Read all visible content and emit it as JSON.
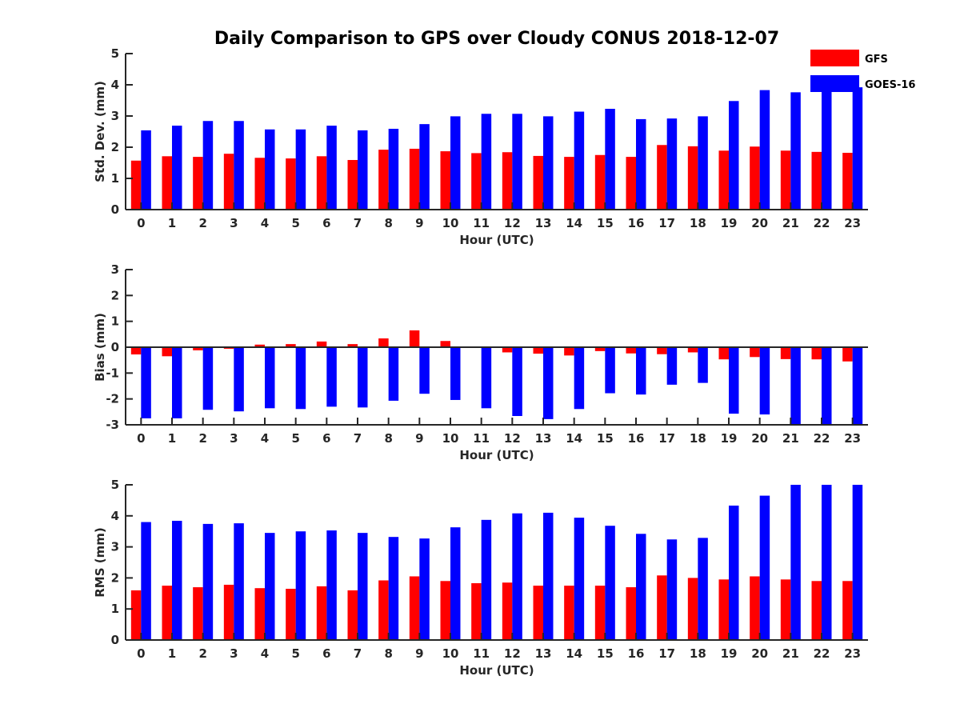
{
  "chart_title": "Daily Comparison to GPS over Cloudy CONUS 2018-12-07",
  "legend": {
    "placement": "top-right"
  },
  "chart_data": [
    {
      "type": "bar",
      "ylabel": "Std. Dev. (mm)",
      "xlabel": "Hour (UTC)",
      "ylim": [
        0,
        5
      ],
      "yticks": [
        0,
        1,
        2,
        3,
        4,
        5
      ],
      "grid": false,
      "categories": [
        "0",
        "1",
        "2",
        "3",
        "4",
        "5",
        "6",
        "7",
        "8",
        "9",
        "10",
        "11",
        "12",
        "13",
        "14",
        "15",
        "16",
        "17",
        "18",
        "19",
        "20",
        "21",
        "22",
        "23"
      ],
      "series": [
        {
          "name": "GFS",
          "color": "#ff0000",
          "values": [
            1.57,
            1.71,
            1.69,
            1.79,
            1.66,
            1.64,
            1.71,
            1.59,
            1.92,
            1.95,
            1.87,
            1.81,
            1.84,
            1.72,
            1.69,
            1.75,
            1.69,
            2.07,
            2.03,
            1.89,
            2.02,
            1.89,
            1.85,
            1.82
          ]
        },
        {
          "name": "GOES-16",
          "color": "#0000ff",
          "values": [
            2.54,
            2.69,
            2.84,
            2.84,
            2.57,
            2.57,
            2.69,
            2.54,
            2.59,
            2.74,
            2.99,
            3.07,
            3.07,
            2.99,
            3.14,
            3.23,
            2.9,
            2.92,
            2.99,
            3.48,
            3.83,
            3.76,
            3.88,
            3.92
          ]
        }
      ]
    },
    {
      "type": "bar",
      "ylabel": "Bias (mm)",
      "xlabel": "Hour (UTC)",
      "ylim": [
        -3,
        3
      ],
      "yticks": [
        -3,
        -2,
        -1,
        0,
        1,
        2,
        3
      ],
      "grid": false,
      "zero_line": true,
      "categories": [
        "0",
        "1",
        "2",
        "3",
        "4",
        "5",
        "6",
        "7",
        "8",
        "9",
        "10",
        "11",
        "12",
        "13",
        "14",
        "15",
        "16",
        "17",
        "18",
        "19",
        "20",
        "21",
        "22",
        "23"
      ],
      "series": [
        {
          "name": "GFS",
          "color": "#ff0000",
          "values": [
            -0.28,
            -0.35,
            -0.12,
            -0.06,
            0.1,
            0.12,
            0.22,
            0.12,
            0.34,
            0.65,
            0.24,
            0,
            -0.2,
            -0.25,
            -0.32,
            -0.15,
            -0.24,
            -0.27,
            -0.2,
            -0.47,
            -0.38,
            -0.46,
            -0.47,
            -0.55
          ]
        },
        {
          "name": "GOES-16",
          "color": "#0000ff",
          "values": [
            -2.75,
            -2.75,
            -2.42,
            -2.48,
            -2.36,
            -2.39,
            -2.3,
            -2.33,
            -2.07,
            -1.8,
            -2.04,
            -2.36,
            -2.66,
            -2.78,
            -2.39,
            -1.78,
            -1.83,
            -1.45,
            -1.38,
            -2.57,
            -2.6,
            -3,
            -3,
            -3
          ]
        }
      ]
    },
    {
      "type": "bar",
      "ylabel": "RMS (mm)",
      "xlabel": "Hour (UTC)",
      "ylim": [
        0,
        5
      ],
      "yticks": [
        0,
        1,
        2,
        3,
        4,
        5
      ],
      "grid": false,
      "categories": [
        "0",
        "1",
        "2",
        "3",
        "4",
        "5",
        "6",
        "7",
        "8",
        "9",
        "10",
        "11",
        "12",
        "13",
        "14",
        "15",
        "16",
        "17",
        "18",
        "19",
        "20",
        "21",
        "22",
        "23"
      ],
      "series": [
        {
          "name": "GFS",
          "color": "#ff0000",
          "values": [
            1.6,
            1.75,
            1.7,
            1.78,
            1.67,
            1.65,
            1.73,
            1.6,
            1.92,
            2.05,
            1.9,
            1.83,
            1.85,
            1.75,
            1.75,
            1.75,
            1.7,
            2.08,
            2.0,
            1.95,
            2.05,
            1.95,
            1.9,
            1.9
          ]
        },
        {
          "name": "GOES-16",
          "color": "#0000ff",
          "values": [
            3.8,
            3.84,
            3.74,
            3.76,
            3.45,
            3.5,
            3.53,
            3.45,
            3.32,
            3.27,
            3.63,
            3.87,
            4.08,
            4.1,
            3.94,
            3.68,
            3.42,
            3.24,
            3.29,
            4.33,
            4.65,
            5,
            5,
            5
          ]
        }
      ]
    }
  ]
}
